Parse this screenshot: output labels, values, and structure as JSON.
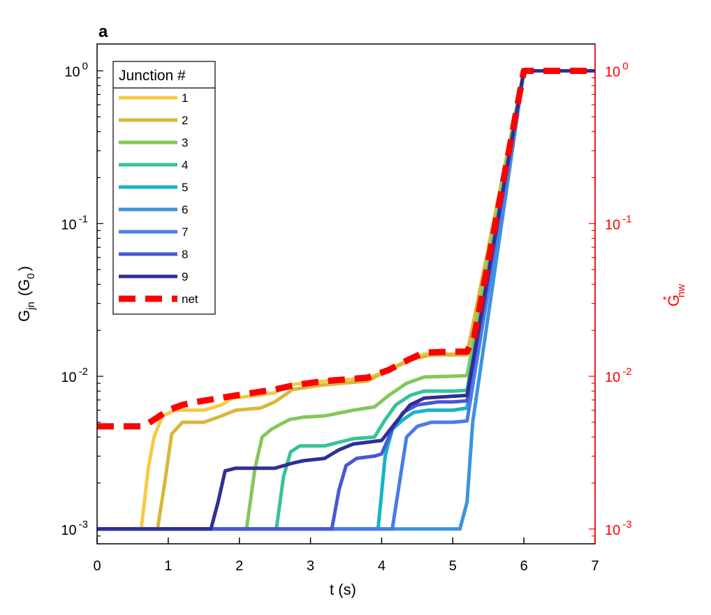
{
  "chart_data": {
    "type": "line",
    "panel_label": "a",
    "xlabel": "t (s)",
    "ylabel": {
      "main": "G",
      "sub": "jn",
      "unit_open": "(G",
      "unit_sub": "0",
      "unit_close": ")"
    },
    "ylabel_right": {
      "main": "G",
      "sup": "*",
      "sub": "nw"
    },
    "xlim": [
      0,
      7
    ],
    "ylim": [
      0.0008,
      1.5
    ],
    "yscale": "log",
    "grid": false,
    "legend_position": "top-left",
    "legend_title": "Junction #",
    "x_ticks": [
      {
        "value": 0,
        "label": "0"
      },
      {
        "value": 1,
        "label": "1"
      },
      {
        "value": 2,
        "label": "2"
      },
      {
        "value": 3,
        "label": "3"
      },
      {
        "value": 4,
        "label": "4"
      },
      {
        "value": 5,
        "label": "5"
      },
      {
        "value": 6,
        "label": "6"
      },
      {
        "value": 7,
        "label": "7"
      }
    ],
    "y_ticks": [
      {
        "value": 0.001,
        "base": "10",
        "exp": "-3"
      },
      {
        "value": 0.01,
        "base": "10",
        "exp": "-2"
      },
      {
        "value": 0.1,
        "base": "10",
        "exp": "-1"
      },
      {
        "value": 1,
        "base": "10",
        "exp": "0"
      }
    ],
    "right_axis_color": "#ff0000",
    "series": [
      {
        "name": "1",
        "color": "#f7ca45",
        "x": [
          0,
          0.62,
          0.72,
          0.8,
          0.92,
          1.1,
          1.5,
          1.75,
          1.9,
          2.25,
          2.5,
          2.7,
          3.2,
          3.8,
          4.1,
          4.4,
          4.6,
          5.0,
          5.2,
          6.0,
          7.0
        ],
        "y": [
          0.001,
          0.001,
          0.0025,
          0.004,
          0.0055,
          0.006,
          0.006,
          0.0065,
          0.0072,
          0.0075,
          0.0078,
          0.0088,
          0.0093,
          0.0097,
          0.011,
          0.013,
          0.014,
          0.014,
          0.014,
          1.0,
          1.0
        ]
      },
      {
        "name": "2",
        "color": "#d8b83a",
        "x": [
          0,
          0.85,
          0.95,
          1.05,
          1.2,
          1.5,
          1.75,
          1.95,
          2.3,
          2.5,
          2.75,
          3.2,
          3.8,
          4.1,
          4.45,
          4.7,
          5.0,
          5.2,
          6.0,
          7.0
        ],
        "y": [
          0.001,
          0.001,
          0.002,
          0.0042,
          0.005,
          0.005,
          0.0055,
          0.006,
          0.0062,
          0.0068,
          0.0082,
          0.0088,
          0.0093,
          0.011,
          0.013,
          0.0138,
          0.0138,
          0.0138,
          1.0,
          1.0
        ]
      },
      {
        "name": "3",
        "color": "#84c75a",
        "x": [
          0,
          2.1,
          2.22,
          2.32,
          2.45,
          2.7,
          2.9,
          3.2,
          3.6,
          3.9,
          4.1,
          4.35,
          4.6,
          5.0,
          5.2,
          6.0,
          7.0
        ],
        "y": [
          0.001,
          0.001,
          0.0025,
          0.004,
          0.0045,
          0.0052,
          0.0054,
          0.0055,
          0.006,
          0.0063,
          0.0075,
          0.009,
          0.0099,
          0.01,
          0.0101,
          1.0,
          1.0
        ]
      },
      {
        "name": "4",
        "color": "#36c29a",
        "x": [
          0,
          2.52,
          2.62,
          2.72,
          2.85,
          3.2,
          3.4,
          3.6,
          3.9,
          4.05,
          4.2,
          4.4,
          4.6,
          5.0,
          5.2,
          6.0,
          7.0
        ],
        "y": [
          0.001,
          0.001,
          0.0022,
          0.0032,
          0.0035,
          0.0035,
          0.0037,
          0.0039,
          0.004,
          0.0052,
          0.0065,
          0.0075,
          0.008,
          0.008,
          0.0081,
          1.0,
          1.0
        ]
      },
      {
        "name": "5",
        "color": "#16b3c9",
        "x": [
          0,
          3.95,
          4.05,
          4.15,
          4.3,
          4.45,
          4.65,
          5.0,
          5.2,
          6.0,
          7.0
        ],
        "y": [
          0.001,
          0.001,
          0.003,
          0.0045,
          0.0052,
          0.0058,
          0.006,
          0.006,
          0.0062,
          1.0,
          1.0
        ]
      },
      {
        "name": "6",
        "color": "#3b94de",
        "x": [
          0,
          5.1,
          5.2,
          5.28,
          6.0,
          7.0
        ],
        "y": [
          0.001,
          0.001,
          0.0015,
          0.005,
          1.0,
          1.0
        ]
      },
      {
        "name": "7",
        "color": "#4a7be9",
        "x": [
          0,
          4.15,
          4.25,
          4.35,
          4.5,
          4.7,
          5.0,
          5.2,
          6.0,
          7.0
        ],
        "y": [
          0.001,
          0.001,
          0.002,
          0.004,
          0.0047,
          0.005,
          0.005,
          0.0051,
          1.0,
          1.0
        ]
      },
      {
        "name": "8",
        "color": "#4a56d8",
        "x": [
          0,
          3.3,
          3.4,
          3.5,
          3.65,
          3.9,
          4.0,
          4.15,
          4.3,
          4.5,
          4.8,
          5.0,
          5.2,
          6.0,
          7.0
        ],
        "y": [
          0.001,
          0.001,
          0.0018,
          0.0026,
          0.0029,
          0.003,
          0.0031,
          0.0045,
          0.0058,
          0.0065,
          0.0068,
          0.0068,
          0.0069,
          1.0,
          1.0
        ]
      },
      {
        "name": "9",
        "color": "#2e2f96",
        "x": [
          0,
          1.6,
          1.7,
          1.8,
          1.95,
          2.5,
          2.75,
          2.9,
          3.2,
          3.4,
          3.6,
          4.0,
          4.2,
          4.4,
          4.6,
          5.0,
          5.2,
          6.0,
          7.0
        ],
        "y": [
          0.001,
          0.001,
          0.0015,
          0.0024,
          0.0025,
          0.0025,
          0.0027,
          0.0028,
          0.0029,
          0.0033,
          0.0036,
          0.0038,
          0.005,
          0.0065,
          0.0072,
          0.0074,
          0.0075,
          1.0,
          1.0
        ]
      },
      {
        "name": "net",
        "color": "#ff0000",
        "dashed": true,
        "x": [
          0,
          0.65,
          0.8,
          1.0,
          1.2,
          1.4,
          1.8,
          2.2,
          2.5,
          2.8,
          3.2,
          3.8,
          4.1,
          4.4,
          4.6,
          5.0,
          5.2,
          5.3,
          6.0,
          7.0
        ],
        "y": [
          0.0047,
          0.0047,
          0.0052,
          0.006,
          0.0065,
          0.0068,
          0.0073,
          0.0078,
          0.0082,
          0.0088,
          0.0093,
          0.0098,
          0.011,
          0.013,
          0.0143,
          0.0145,
          0.0145,
          0.018,
          1.0,
          1.0
        ]
      }
    ]
  }
}
